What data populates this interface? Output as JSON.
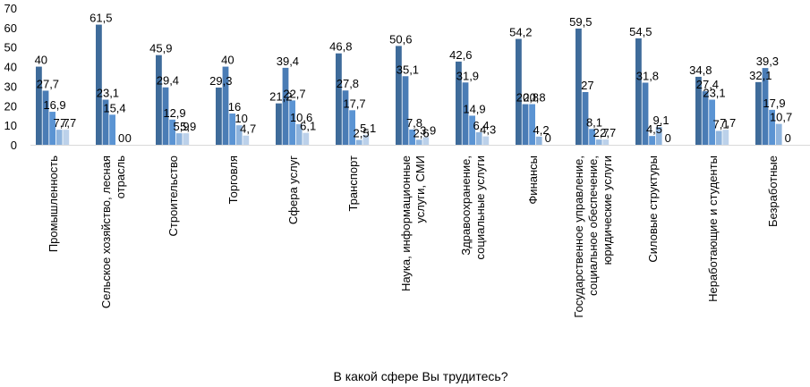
{
  "chart_data": {
    "type": "bar",
    "title": "",
    "xlabel": "В какой сфере Вы трудитесь?",
    "ylabel": "",
    "ylim": [
      0,
      70
    ],
    "yticks": [
      "0",
      "10",
      "20",
      "30",
      "40",
      "50",
      "60",
      "70"
    ],
    "grid": false,
    "legend": "none",
    "categories": [
      [
        "Промышленность"
      ],
      [
        "Сельское хозяйство, лесная",
        "отрасль"
      ],
      [
        "Строительство"
      ],
      [
        "Торговля"
      ],
      [
        "Сфера услуг"
      ],
      [
        "Транспорт"
      ],
      [
        "Наука, информационные",
        "услуги, СМИ"
      ],
      [
        "Здравоохранение,",
        "социальные услуги"
      ],
      [
        "Финансы"
      ],
      [
        "Государственное управление,",
        "социальное обеспечение,",
        "юридические услуги"
      ],
      [
        "Силовые структуры"
      ],
      [
        "Неработающие и студенты"
      ],
      [
        "Безработные"
      ]
    ],
    "series": [
      {
        "name": "s1",
        "color": "#3e6b9a",
        "values": [
          40,
          61.5,
          45.9,
          29.3,
          21.2,
          46.8,
          50.6,
          42.6,
          54.2,
          59.5,
          54.5,
          34.8,
          32.1
        ]
      },
      {
        "name": "s2",
        "color": "#4a7cb5",
        "values": [
          27.7,
          23.1,
          29.4,
          40,
          39.4,
          27.8,
          35.1,
          31.9,
          20.8,
          27,
          31.8,
          27.4,
          39.3
        ]
      },
      {
        "name": "s3",
        "color": "#5b94d3",
        "values": [
          16.9,
          15.4,
          12.9,
          16,
          22.7,
          17.7,
          7.8,
          14.9,
          20.8,
          8.1,
          4.5,
          23.1,
          17.9
        ]
      },
      {
        "name": "s4",
        "color": "#8fb4dd",
        "values": [
          7.7,
          0,
          5.9,
          10,
          10.6,
          2.5,
          2.6,
          6.4,
          4.2,
          2.7,
          9.1,
          7.1,
          10.7
        ]
      },
      {
        "name": "s5",
        "color": "#bcd1ea",
        "values": [
          7.7,
          0,
          5.9,
          4.7,
          6.1,
          5.1,
          3.9,
          4.3,
          0,
          2.7,
          0,
          7.7,
          0
        ]
      }
    ],
    "labels": [
      [
        "40",
        "27,7",
        "16,9",
        "7,7",
        "7,7"
      ],
      [
        "61,5",
        "23,1",
        "15,4",
        "0",
        "0"
      ],
      [
        "45,9",
        "29,4",
        "12,9",
        "5,9",
        "5,9"
      ],
      [
        "29,3",
        "40",
        "16",
        "10",
        "4,7"
      ],
      [
        "21,2",
        "39,4",
        "22,7",
        "10,6",
        "6,1"
      ],
      [
        "46,8",
        "27,8",
        "17,7",
        "2,5",
        "5,1"
      ],
      [
        "50,6",
        "35,1",
        "7,8",
        "2,6",
        "3,9"
      ],
      [
        "42,6",
        "31,9",
        "14,9",
        "6,4",
        "4,3"
      ],
      [
        "54,2",
        "20,8",
        "20,8",
        "4,2",
        "0"
      ],
      [
        "59,5",
        "27",
        "8,1",
        "2,7",
        "2,7"
      ],
      [
        "54,5",
        "31,8",
        "4,5",
        "9,1",
        "0"
      ],
      [
        "34,8",
        "27,4",
        "23,1",
        "7,1",
        "7,7"
      ],
      [
        "32,1",
        "39,3",
        "17,9",
        "10,7",
        "0"
      ]
    ]
  }
}
